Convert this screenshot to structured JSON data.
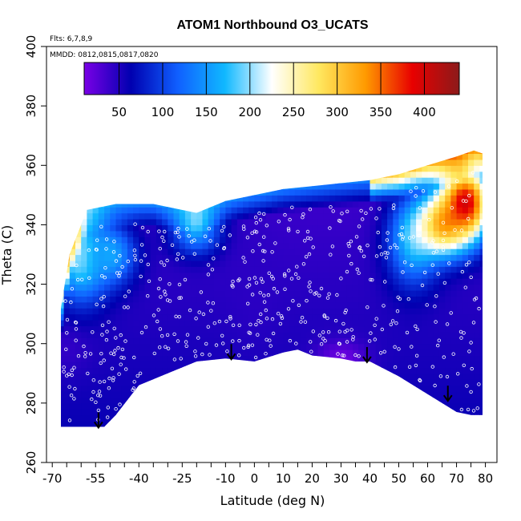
{
  "chart_data": {
    "type": "heatmap",
    "title": "ATOM1 Northbound O3_UCATS",
    "flights_note": "Flts: 6,7,8,9",
    "dates_note": "MMDD: 0812,0815,0817,0820",
    "xlabel": "Latitude (deg N)",
    "ylabel": "Theta (C)",
    "xlim": [
      -70,
      80
    ],
    "ylim": [
      260,
      400
    ],
    "x_ticks": [
      -70,
      -55,
      -40,
      -25,
      -10,
      0,
      10,
      20,
      30,
      40,
      50,
      60,
      70,
      80
    ],
    "y_ticks": [
      260,
      280,
      300,
      320,
      340,
      360,
      380,
      400
    ],
    "colorbar": {
      "range": [
        10,
        440
      ],
      "ticks": [
        50,
        100,
        150,
        200,
        250,
        300,
        350,
        400
      ],
      "colors": [
        "#7a00e6",
        "#0000b0",
        "#1060ff",
        "#10b8ff",
        "#ffffff",
        "#ffe860",
        "#ff9a00",
        "#e80000",
        "#8c1a1a"
      ]
    },
    "surface_boundary": [
      [
        -67,
        272
      ],
      [
        -52,
        272
      ],
      [
        -48,
        276
      ],
      [
        -40,
        286
      ],
      [
        -30,
        290
      ],
      [
        -20,
        294
      ],
      [
        -10,
        295
      ],
      [
        0,
        294
      ],
      [
        10,
        297
      ],
      [
        15,
        298
      ],
      [
        20,
        296
      ],
      [
        30,
        295
      ],
      [
        35,
        294
      ],
      [
        40,
        294
      ],
      [
        50,
        289
      ],
      [
        60,
        283
      ],
      [
        70,
        277
      ],
      [
        75,
        276
      ],
      [
        79,
        276
      ]
    ],
    "top_boundary": [
      [
        -67,
        312
      ],
      [
        -64,
        330
      ],
      [
        -58,
        345
      ],
      [
        -48,
        347
      ],
      [
        -35,
        347
      ],
      [
        -20,
        344
      ],
      [
        -10,
        348
      ],
      [
        0,
        350
      ],
      [
        10,
        352
      ],
      [
        20,
        353
      ],
      [
        30,
        354
      ],
      [
        40,
        355
      ],
      [
        50,
        357
      ],
      [
        60,
        360
      ],
      [
        70,
        363
      ],
      [
        76,
        365
      ],
      [
        79,
        364
      ]
    ],
    "ozone_field": [
      {
        "lat": -65,
        "theta_lo": 290,
        "theta_hi": 310,
        "o3": 40
      },
      {
        "lat": -60,
        "theta_lo": 315,
        "theta_hi": 345,
        "o3": 210
      },
      {
        "lat": -50,
        "theta_lo": 320,
        "theta_hi": 340,
        "o3": 160
      },
      {
        "lat": -20,
        "theta_lo": 330,
        "theta_hi": 346,
        "o3": 150
      },
      {
        "lat": 0,
        "theta_lo": 300,
        "theta_hi": 340,
        "o3": 45
      },
      {
        "lat": 30,
        "theta_lo": 290,
        "theta_hi": 300,
        "o3": 15
      },
      {
        "lat": 55,
        "theta_lo": 320,
        "theta_hi": 350,
        "o3": 170
      },
      {
        "lat": 65,
        "theta_lo": 330,
        "theta_hi": 350,
        "o3": 300
      },
      {
        "lat": 73,
        "theta_lo": 335,
        "theta_hi": 360,
        "o3": 400
      }
    ],
    "arrows": [
      {
        "lat": -54,
        "theta": 272
      },
      {
        "lat": -8,
        "theta": 295
      },
      {
        "lat": 39,
        "theta": 294
      },
      {
        "lat": 67,
        "theta": 281
      }
    ]
  }
}
